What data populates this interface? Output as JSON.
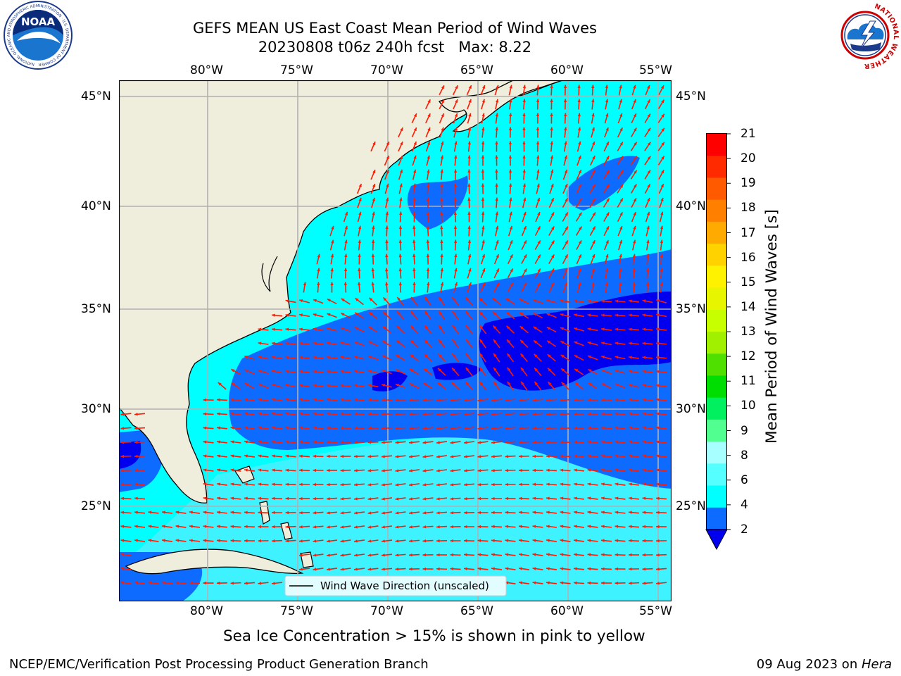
{
  "title": {
    "line1": "GEFS MEAN US East Coast Mean Period of Wind Waves",
    "line2": "20230808 t06z 240h fcst   Max: 8.22"
  },
  "logos": {
    "noaa_text": "NOAA",
    "noaa_ring_text": "NATIONAL OCEANIC AND ATMOSPHERIC ADMINISTRATION · U.S. DEPARTMENT OF COMMERCE",
    "nws_ring_text": "NATIONAL WEATHER SERVICE"
  },
  "map": {
    "lon_labels": [
      "80°W",
      "75°W",
      "70°W",
      "65°W",
      "60°W",
      "55°W"
    ],
    "lat_labels": [
      "45°N",
      "40°N",
      "35°N",
      "30°N",
      "25°N"
    ],
    "legend_label": "Wind Wave Direction (unscaled)",
    "colors": {
      "land": "#efeddc",
      "grid": "#b0b0b0",
      "arrow": "#ff1a00",
      "band_2_4": "#0d6cff",
      "band_4_6": "#00ffff",
      "band_6_8": "#3ff2ff",
      "band_below_2": "#0000ee"
    }
  },
  "colorbar": {
    "label": "Mean Period of Wind Waves [s]",
    "ticks": [
      "21",
      "20",
      "19",
      "18",
      "17",
      "16",
      "15",
      "14",
      "13",
      "12",
      "11",
      "10",
      "9",
      "8",
      "6",
      "4",
      "2"
    ],
    "colors_top_to_bottom": [
      "#ff0000",
      "#ff2a00",
      "#ff5a00",
      "#ff8000",
      "#ffaa00",
      "#ffd200",
      "#fff200",
      "#e8f500",
      "#c8ff00",
      "#a0f000",
      "#50e000",
      "#00dd00",
      "#00f060",
      "#50ff90",
      "#a8ffff",
      "#55ffff",
      "#00ffff",
      "#0d6cff"
    ],
    "extend_color": "#0000ee"
  },
  "caption": "Sea Ice Concentration > 15% is shown in pink to yellow",
  "footer": {
    "left": "NCEP/EMC/Verification Post Processing Product Generation Branch",
    "right_date": "09 Aug 2023 on ",
    "right_host": "Hera"
  }
}
